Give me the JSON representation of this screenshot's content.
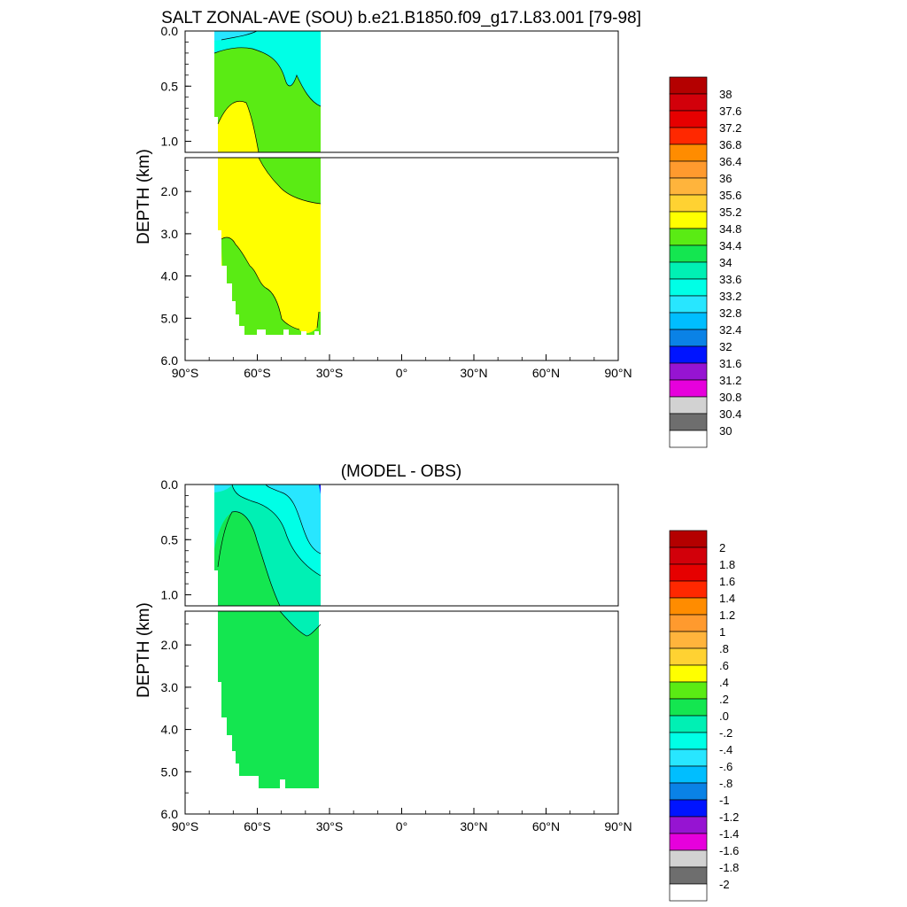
{
  "chart_data": [
    {
      "type": "contour",
      "title": "SALT ZONAL-AVE (SOU) b.e21.B1850.f09_g17.L83.001 [79-98]",
      "ylabel": "DEPTH (km)",
      "x_ticks": [
        "90°S",
        "60°S",
        "30°S",
        "0°",
        "30°N",
        "60°N",
        "90°N"
      ],
      "x_range": [
        -90,
        90
      ],
      "y_ticks_upper": [
        "0.0",
        "0.5",
        "1.0"
      ],
      "y_ticks_lower": [
        "2.0",
        "3.0",
        "4.0",
        "5.0",
        "6.0"
      ],
      "y_range_upper": [
        0,
        1.1
      ],
      "y_range_lower": [
        1.2,
        6.0
      ],
      "data_extent_lat": [
        -78,
        -34
      ],
      "colorbar": {
        "labels": [
          "38",
          "37.6",
          "37.2",
          "36.8",
          "36.4",
          "36",
          "35.6",
          "35.2",
          "34.8",
          "34.4",
          "34",
          "33.6",
          "33.2",
          "32.8",
          "32.4",
          "32",
          "31.6",
          "31.2",
          "30.8",
          "30.4",
          "30"
        ],
        "colors": [
          "#b40000",
          "#d2000a",
          "#e60000",
          "#ff2800",
          "#ff8c00",
          "#ff9a2e",
          "#ffb43c",
          "#ffd232",
          "#ffff00",
          "#5aeb14",
          "#14e650",
          "#00f0b4",
          "#00ffe6",
          "#28e6ff",
          "#00beff",
          "#0a82e6",
          "#0014ff",
          "#9614d2",
          "#e600dc",
          "#d2d2d2",
          "#6e6e6e",
          "#ffffff"
        ]
      }
    },
    {
      "type": "contour",
      "title": "(MODEL - OBS)",
      "ylabel": "DEPTH (km)",
      "x_ticks": [
        "90°S",
        "60°S",
        "30°S",
        "0°",
        "30°N",
        "60°N",
        "90°N"
      ],
      "x_range": [
        -90,
        90
      ],
      "y_ticks_upper": [
        "0.0",
        "0.5",
        "1.0"
      ],
      "y_ticks_lower": [
        "2.0",
        "3.0",
        "4.0",
        "5.0",
        "6.0"
      ],
      "y_range_upper": [
        0,
        1.1
      ],
      "y_range_lower": [
        1.2,
        6.0
      ],
      "data_extent_lat": [
        -78,
        -34
      ],
      "colorbar": {
        "labels": [
          "2",
          "1.8",
          "1.6",
          "1.4",
          "1.2",
          "1",
          ".8",
          ".6",
          ".4",
          ".2",
          ".0",
          "-.2",
          "-.4",
          "-.6",
          "-.8",
          "-1",
          "-1.2",
          "-1.4",
          "-1.6",
          "-1.8",
          "-2"
        ],
        "colors": [
          "#b40000",
          "#d2000a",
          "#e60000",
          "#ff2800",
          "#ff8c00",
          "#ff9a2e",
          "#ffb43c",
          "#ffd232",
          "#ffff00",
          "#5aeb14",
          "#14e650",
          "#00f0b4",
          "#00ffe6",
          "#28e6ff",
          "#00beff",
          "#0a82e6",
          "#0014ff",
          "#9614d2",
          "#e600dc",
          "#d2d2d2",
          "#6e6e6e",
          "#ffffff"
        ]
      }
    }
  ]
}
